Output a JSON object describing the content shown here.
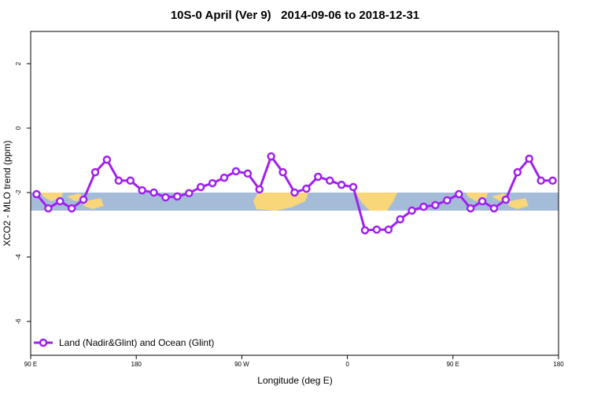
{
  "chart_data": {
    "type": "line",
    "title": "10S-0 April (Ver 9)   2014-09-06 to 2018-12-31",
    "x_label": "Longitude (deg E)",
    "y_label": "XCO2 - MLO trend (ppm)",
    "x": [
      95,
      105,
      115,
      125,
      135,
      145,
      155,
      165,
      175,
      185,
      195,
      205,
      215,
      225,
      235,
      245,
      255,
      265,
      275,
      285,
      295,
      305,
      315,
      325,
      335,
      345,
      355,
      365,
      375,
      385,
      395,
      405,
      415,
      425,
      435,
      445,
      455,
      465,
      475,
      485,
      495,
      505,
      515,
      525,
      535
    ],
    "series": [
      {
        "name": "Land (Nadir&Glint) and Ocean (Glint)",
        "color": "#a020f0",
        "values": [
          -2.05,
          -2.49,
          -2.27,
          -2.49,
          -2.22,
          -1.37,
          -0.98,
          -1.63,
          -1.63,
          -1.93,
          -2.0,
          -2.15,
          -2.12,
          -2.02,
          -1.83,
          -1.71,
          -1.54,
          -1.34,
          -1.41,
          -1.9,
          -0.88,
          -1.37,
          -2.0,
          -1.88,
          -1.51,
          -1.63,
          -1.76,
          -1.83,
          -3.17,
          -3.15,
          -3.15,
          -2.83,
          -2.56,
          -2.44,
          -2.39,
          -2.24,
          -2.05,
          -2.49,
          -2.27,
          -2.49,
          -2.22,
          -1.37,
          -0.95,
          -1.63,
          -1.63
        ]
      }
    ],
    "xlim": [
      90,
      540
    ],
    "xticks": [
      {
        "value": 90,
        "label": "90 E"
      },
      {
        "value": 180,
        "label": "180"
      },
      {
        "value": 270,
        "label": "90 W"
      },
      {
        "value": 360,
        "label": "0"
      },
      {
        "value": 450,
        "label": "90 E"
      },
      {
        "value": 540,
        "label": "180"
      }
    ],
    "ylim": [
      -7.05,
      3
    ],
    "yticks": [
      -6,
      -4,
      -2,
      0,
      2
    ],
    "grid": false,
    "legend": "bottomleft"
  }
}
